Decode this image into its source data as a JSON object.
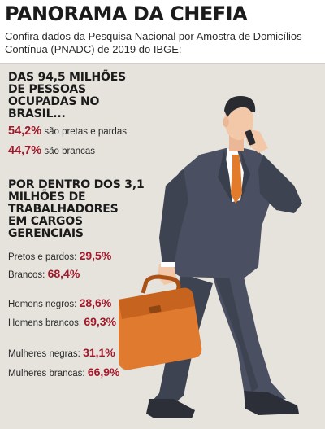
{
  "title": "PANORAMA DA CHEFIA",
  "subtitle": "Confira dados da Pesquisa Nacional por Amostra de Domicílios Contínua (PNADC) de 2019 do IBGE:",
  "section1": {
    "heading_lines": [
      "DAS 94,5 MILHÕES",
      "DE PESSOAS",
      "OCUPADAS NO",
      "BRASIL..."
    ],
    "stats": [
      {
        "value": "54,2%",
        "label": "são pretas e pardas"
      },
      {
        "value": "44,7%",
        "label": "são brancas"
      }
    ]
  },
  "section2": {
    "heading_lines": [
      "POR DENTRO DOS 3,1",
      "MILHÕES DE",
      "TRABALHADORES",
      "EM CARGOS",
      "GERENCIAIS"
    ],
    "stats": [
      {
        "label": "Pretos e pardos:",
        "value": "29,5%"
      },
      {
        "label": "Brancos:",
        "value": "68,4%"
      },
      {
        "label": "Homens negros:",
        "value": "28,6%"
      },
      {
        "label": "Homens brancos:",
        "value": "69,3%"
      },
      {
        "label": "Mulheres negras:",
        "value": "31,1%"
      },
      {
        "label": "Mulheres brancas:",
        "value": "66,9%"
      }
    ]
  },
  "colors": {
    "accent": "#a3182a",
    "panel_bg": "#e6e3dd",
    "suit": "#4a5061",
    "skin": "#f2c8a8",
    "tie": "#e27b2b",
    "briefcase": "#e07a2e"
  },
  "icons": {
    "illustration": "businessman-on-phone-with-briefcase-illustration"
  }
}
